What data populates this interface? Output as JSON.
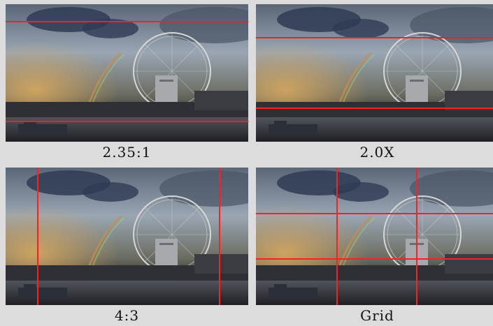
{
  "panels": [
    {
      "id": "p235",
      "caption": "2.35:1",
      "guides": {
        "h": [
          0.12,
          0.85
        ],
        "v": []
      }
    },
    {
      "id": "p20x",
      "caption": "2.0X",
      "guides": {
        "h": [
          0.24,
          0.75
        ],
        "v": []
      }
    },
    {
      "id": "p43",
      "caption": "4:3",
      "guides": {
        "h": [],
        "v": [
          0.13,
          0.88
        ]
      }
    },
    {
      "id": "pgrid",
      "caption": "Grid",
      "guides": {
        "h": [
          0.33,
          0.66
        ],
        "v": [
          0.33,
          0.66
        ]
      }
    }
  ],
  "colors": {
    "guide": "#ff1f1f",
    "background": "#dcdcdc",
    "caption_text": "#111111"
  },
  "icons": {
    "photo": "london-eye-rainbow-photo"
  }
}
